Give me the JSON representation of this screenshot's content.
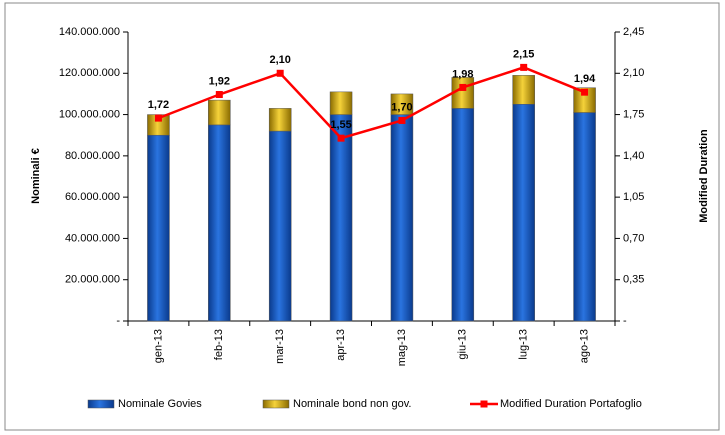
{
  "chart_data": {
    "type": "bar-line",
    "categories": [
      "gen-13",
      "feb-13",
      "mar-13",
      "apr-13",
      "mag-13",
      "giu-13",
      "lug-13",
      "ago-13"
    ],
    "y_label": "Nominali €",
    "y2_label": "Modified Duration",
    "stacked": true,
    "series": [
      {
        "name": "Nominale Govies",
        "type": "bar",
        "color": "#1f5fbf",
        "values": [
          90000000,
          95000000,
          92000000,
          100000000,
          100000000,
          103000000,
          105000000,
          101000000
        ]
      },
      {
        "name": "Nominale bond non gov.",
        "type": "bar",
        "color": "#e0b81a",
        "values": [
          10000000,
          12000000,
          11000000,
          11000000,
          10000000,
          15000000,
          14000000,
          12000000
        ]
      },
      {
        "name": "Modified Duration Portafoglio",
        "type": "line",
        "axis": "y2",
        "color": "#ff0000",
        "values": [
          1.72,
          1.92,
          2.1,
          1.55,
          1.7,
          1.98,
          2.15,
          1.94
        ],
        "value_labels": [
          "1,72",
          "1,92",
          "2,10",
          "1,55",
          "1,70",
          "1,98",
          "2,15",
          "1,94"
        ]
      }
    ],
    "ylim": [
      0,
      140000000
    ],
    "yticks": [
      {
        "value": 0,
        "label": "-"
      },
      {
        "value": 20000000,
        "label": "20.000.000"
      },
      {
        "value": 40000000,
        "label": "40.000.000"
      },
      {
        "value": 60000000,
        "label": "60.000.000"
      },
      {
        "value": 80000000,
        "label": "80.000.000"
      },
      {
        "value": 100000000,
        "label": "100.000.000"
      },
      {
        "value": 120000000,
        "label": "120.000.000"
      },
      {
        "value": 140000000,
        "label": "140.000.000"
      }
    ],
    "y2lim": [
      0,
      2.45
    ],
    "y2ticks": [
      {
        "value": 0,
        "label": "-"
      },
      {
        "value": 0.35,
        "label": "0,35"
      },
      {
        "value": 0.7,
        "label": "0,70"
      },
      {
        "value": 1.05,
        "label": "1,05"
      },
      {
        "value": 1.4,
        "label": "1,40"
      },
      {
        "value": 1.75,
        "label": "1,75"
      },
      {
        "value": 2.1,
        "label": "2,10"
      },
      {
        "value": 2.45,
        "label": "2,45"
      }
    ],
    "legend": "bottom"
  }
}
